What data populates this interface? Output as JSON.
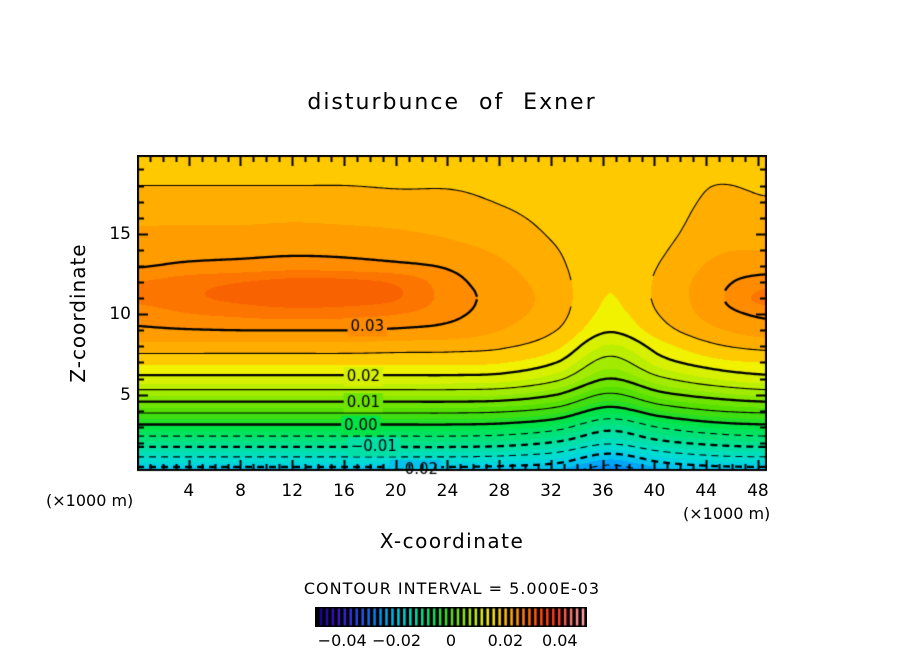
{
  "title": "disturbunce of Exner",
  "axes": {
    "x_label": "X-coordinate",
    "y_label": "Z-coordinate",
    "unit_left": "(×1000 m)",
    "unit_right": "(×1000 m)"
  },
  "contour_note": "CONTOUR INTERVAL = 5.000E-03",
  "colorbar": {
    "background": "#000000",
    "min": -0.05,
    "max": 0.05,
    "stripes": 45,
    "rainbow_stops": [
      "#16069C",
      "#3A0EC4",
      "#3426E6",
      "#2050F2",
      "#0A7CF8",
      "#00A6F6",
      "#00CCE0",
      "#00DDB4",
      "#00E27C",
      "#1EE040",
      "#5CDE14",
      "#96E800",
      "#D0F000",
      "#FCEC00",
      "#FFC400",
      "#FF9800",
      "#FF6C00",
      "#FF4600",
      "#F83820",
      "#FA6E72",
      "#FFA2A8"
    ],
    "ticks": [
      {
        "value": -0.04,
        "label": "−0.04"
      },
      {
        "value": -0.02,
        "label": "−0.02"
      },
      {
        "value": 0,
        "label": "0"
      },
      {
        "value": 0.02,
        "label": "0.02"
      },
      {
        "value": 0.04,
        "label": "0.04"
      }
    ]
  },
  "chart_data": {
    "type": "heatmap",
    "subtype": "filled_contour",
    "title": "disturbunce of Exner",
    "xlabel": "X-coordinate",
    "ylabel": "Z-coordinate",
    "x_range": [
      0,
      48.7
    ],
    "z_range": [
      0.25,
      19.9
    ],
    "x_ticks_major": [
      4,
      8,
      12,
      16,
      20,
      24,
      28,
      32,
      36,
      40,
      44,
      48
    ],
    "x_tick_minor_step": 1,
    "z_ticks_major": [
      5,
      10,
      15
    ],
    "z_tick_minor_step": 1,
    "contour_interval": 0.005,
    "value_scale": 0.001,
    "grid_x": [
      0,
      4.058,
      8.117,
      12.175,
      16.233,
      20.292,
      24.35,
      28.408,
      32.467,
      36.525,
      40.583,
      44.642,
      48.7
    ],
    "grid_z": [
      0,
      1,
      2,
      3,
      4,
      5,
      6,
      7,
      8,
      9,
      10,
      11,
      12,
      13,
      14,
      15,
      16,
      17,
      18,
      19,
      20
    ],
    "values_by_column": [
      [
        -23,
        -16,
        -8,
        -1,
        6,
        13,
        19,
        23,
        26.5,
        29.5,
        31,
        33,
        32.5,
        29.8,
        28.8,
        28,
        27,
        26,
        25,
        24,
        23.5
      ],
      [
        -23,
        -16,
        -8,
        -1,
        6,
        13,
        19,
        23,
        26.5,
        29.8,
        32.3,
        34.5,
        34,
        30.6,
        29,
        28.2,
        27,
        26,
        25,
        24,
        23.5
      ],
      [
        -23,
        -16,
        -8,
        -1,
        6,
        13,
        19,
        23,
        26.5,
        30,
        33,
        35.6,
        35,
        31,
        29.2,
        28.2,
        27,
        26,
        25,
        24,
        23.5
      ],
      [
        -23,
        -16,
        -8,
        -1,
        6,
        13,
        19,
        23,
        26.5,
        30,
        33.5,
        36.5,
        36,
        31.5,
        29.4,
        28.4,
        27.2,
        26.2,
        25,
        24,
        23.5
      ],
      [
        -23,
        -16,
        -8,
        -1,
        6,
        13,
        19,
        23,
        26.5,
        30,
        33.2,
        36.2,
        35.8,
        31.2,
        29.3,
        28.2,
        27,
        26,
        25,
        24,
        23.5
      ],
      [
        -23,
        -16,
        -8,
        -1,
        6,
        13,
        19,
        23,
        26.2,
        29.6,
        32.4,
        35,
        34.5,
        30.6,
        28.8,
        27.8,
        26.8,
        25.8,
        24.8,
        24,
        23.4
      ],
      [
        -23,
        -16,
        -8,
        -1,
        6,
        13,
        19,
        23,
        26,
        29,
        30.6,
        31.2,
        30.8,
        29.6,
        28.2,
        27.2,
        26.4,
        25.6,
        24.8,
        23.9,
        23.3
      ],
      [
        -23.5,
        -16.5,
        -8.5,
        -1.5,
        5.5,
        12.5,
        18.5,
        22.5,
        25.3,
        27.3,
        28.4,
        28.9,
        28.5,
        27.8,
        27,
        26.2,
        25.5,
        24.8,
        24.2,
        23.6,
        23.1
      ],
      [
        -24.5,
        -18,
        -10.5,
        -3.5,
        3.5,
        10,
        15.8,
        20,
        23,
        25,
        26,
        26.3,
        26.1,
        25.6,
        25.1,
        24.6,
        24.2,
        23.8,
        23.4,
        23.1,
        22.9
      ],
      [
        -28,
        -22.5,
        -14.5,
        -8.5,
        -1.5,
        4.5,
        10,
        13.7,
        17,
        20.3,
        21.8,
        22.4,
        22.6,
        22.7,
        22.7,
        22.7,
        22.8,
        22.9,
        23,
        23,
        23
      ],
      [
        -25,
        -18.5,
        -11,
        -4.5,
        2.5,
        9,
        14.5,
        18.8,
        21.5,
        24,
        25.2,
        25.8,
        25.7,
        25.2,
        24.7,
        24.2,
        23.8,
        23.5,
        23.2,
        23,
        22.8
      ],
      [
        -23.5,
        -16.5,
        -9,
        -2,
        5,
        11.5,
        17.5,
        21.5,
        24.5,
        27,
        28.5,
        29.2,
        28.9,
        28,
        27.2,
        26.5,
        26,
        25.5,
        25,
        24.2,
        23.4
      ],
      [
        -23,
        -16,
        -8,
        -1,
        6,
        13,
        19,
        22.5,
        25.8,
        28.7,
        30.6,
        33.5,
        31.5,
        28.5,
        27.5,
        26.5,
        25.8,
        25.2,
        24.6,
        23.8,
        23.2
      ]
    ],
    "fill_step": 2.5,
    "fill_palette": [
      {
        "from": -30,
        "color": "#2E7EFF"
      },
      {
        "from": -27.5,
        "color": "#0090FC"
      },
      {
        "from": -25,
        "color": "#00A6F6"
      },
      {
        "from": -22.5,
        "color": "#00C4EC"
      },
      {
        "from": -20,
        "color": "#00D4E0"
      },
      {
        "from": -17.5,
        "color": "#00DCD0"
      },
      {
        "from": -15,
        "color": "#00DFBC"
      },
      {
        "from": -12.5,
        "color": "#00E0A6"
      },
      {
        "from": -10,
        "color": "#00E190"
      },
      {
        "from": -7.5,
        "color": "#00E278"
      },
      {
        "from": -5,
        "color": "#00E360"
      },
      {
        "from": -2.5,
        "color": "#00E448"
      },
      {
        "from": 0,
        "color": "#24DF26"
      },
      {
        "from": 2.5,
        "color": "#3FDE10"
      },
      {
        "from": 5,
        "color": "#55E000"
      },
      {
        "from": 7.5,
        "color": "#6EE400"
      },
      {
        "from": 10,
        "color": "#88E800"
      },
      {
        "from": 12.5,
        "color": "#A2EB00"
      },
      {
        "from": 15,
        "color": "#BCEE00"
      },
      {
        "from": 17.5,
        "color": "#D6F000"
      },
      {
        "from": 20,
        "color": "#F0F200"
      },
      {
        "from": 22.5,
        "color": "#FFC900"
      },
      {
        "from": 25,
        "color": "#FFAE00"
      },
      {
        "from": 27.5,
        "color": "#FF9C00"
      },
      {
        "from": 30,
        "color": "#FF8C00"
      },
      {
        "from": 32.5,
        "color": "#FB7500"
      },
      {
        "from": 35,
        "color": "#F96200"
      },
      {
        "from": 37.5,
        "color": "#F75200"
      }
    ],
    "line_levels": [
      -25,
      -20,
      -15,
      -10,
      -5,
      0,
      5,
      10,
      15,
      20,
      25,
      30
    ],
    "line_style": {
      "negative": "dashed",
      "thick_every": 10
    },
    "contour_labels": [
      {
        "text": "0.03",
        "x": 17.8,
        "z": 9.2
      },
      {
        "text": "0.02",
        "x": 17.5,
        "z": 6.1
      },
      {
        "text": "0.01",
        "x": 17.5,
        "z": 4.5
      },
      {
        "text": "0.00",
        "x": 17.3,
        "z": 3.1
      },
      {
        "text": "−0.01",
        "x": 18.3,
        "z": 1.75
      },
      {
        "text": "−0.02",
        "x": 21.5,
        "z": 0.35
      }
    ]
  }
}
